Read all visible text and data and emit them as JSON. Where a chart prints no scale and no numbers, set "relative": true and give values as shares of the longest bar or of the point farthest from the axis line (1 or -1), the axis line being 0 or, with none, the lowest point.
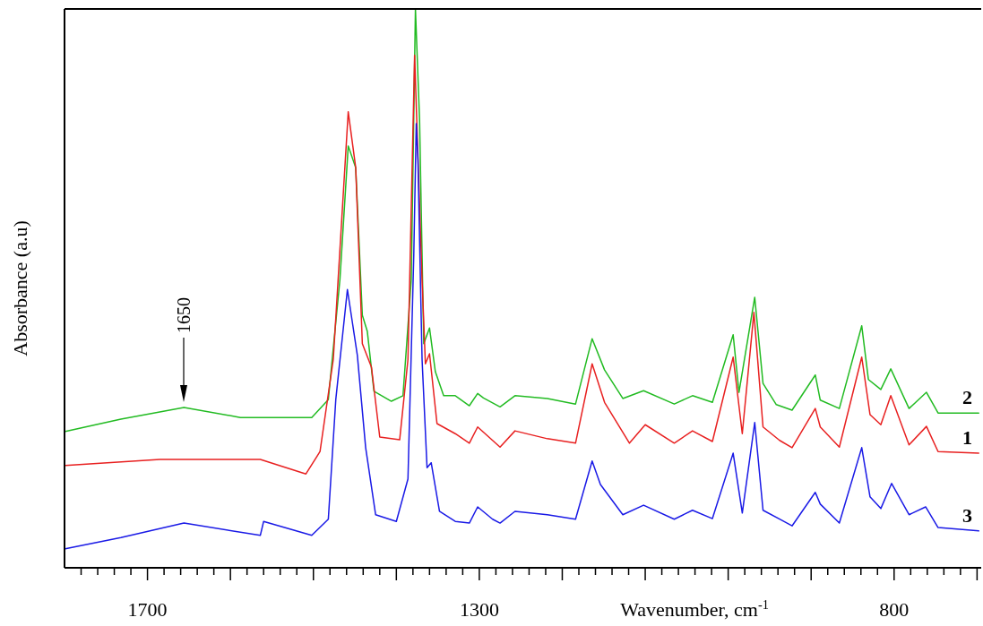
{
  "chart_data": {
    "type": "line",
    "relative": true,
    "xlabel": "Wavenumber, cm$^{-1}$",
    "ylabel": "Absorbance (a.u)",
    "xlim": [
      1800,
      695
    ],
    "xticks": [
      {
        "value": 1780,
        "label": null
      },
      {
        "value": 1760,
        "label": null
      },
      {
        "value": 1740,
        "label": null
      },
      {
        "value": 1720,
        "label": null
      },
      1700,
      {
        "value": 1680,
        "label": null
      },
      {
        "value": 1660,
        "label": null
      },
      {
        "value": 1640,
        "label": null
      },
      {
        "value": 1620,
        "label": null
      },
      {
        "value": 1600,
        "label": null
      },
      {
        "value": 1580,
        "label": null
      },
      {
        "value": 1560,
        "label": null
      },
      {
        "value": 1540,
        "label": null
      },
      {
        "value": 1520,
        "label": null
      },
      {
        "value": 1500,
        "label": null
      },
      {
        "value": 1480,
        "label": null
      },
      {
        "value": 1460,
        "label": null
      },
      {
        "value": 1440,
        "label": null
      },
      {
        "value": 1420,
        "label": null
      },
      {
        "value": 1400,
        "label": null
      },
      {
        "value": 1380,
        "label": null
      },
      {
        "value": 1360,
        "label": null
      },
      {
        "value": 1340,
        "label": null
      },
      {
        "value": 1320,
        "label": null
      },
      1300,
      {
        "value": 1280,
        "label": null
      },
      {
        "value": 1260,
        "label": null
      },
      {
        "value": 1240,
        "label": null
      },
      {
        "value": 1220,
        "label": null
      },
      {
        "value": 1200,
        "label": null
      },
      {
        "value": 1180,
        "label": null
      },
      {
        "value": 1160,
        "label": null
      },
      {
        "value": 1140,
        "label": null
      },
      {
        "value": 1120,
        "label": null
      },
      {
        "value": 1100,
        "label": null
      },
      {
        "value": 1080,
        "label": null
      },
      {
        "value": 1060,
        "label": null
      },
      {
        "value": 1040,
        "label": null
      },
      {
        "value": 1020,
        "label": null
      },
      {
        "value": 1000,
        "label": null
      },
      {
        "value": 980,
        "label": null
      },
      {
        "value": 960,
        "label": null
      },
      {
        "value": 940,
        "label": null
      },
      {
        "value": 920,
        "label": null
      },
      {
        "value": 900,
        "label": null
      },
      {
        "value": 880,
        "label": null
      },
      {
        "value": 860,
        "label": null
      },
      {
        "value": 840,
        "label": null
      },
      {
        "value": 820,
        "label": null
      },
      800,
      {
        "value": 780,
        "label": null
      },
      {
        "value": 760,
        "label": null
      },
      {
        "value": 740,
        "label": null
      },
      {
        "value": 720,
        "label": null
      },
      {
        "value": 700,
        "label": null
      }
    ],
    "legend": false,
    "grid": false,
    "line_style": "solid",
    "annotations": [
      "1650"
    ],
    "series": [
      {
        "name": "2",
        "color": "#22bb22",
        "x": [
          1799,
          1732,
          1656,
          1588,
          1502,
          1482,
          1468,
          1458,
          1449,
          1441,
          1435,
          1427,
          1406,
          1392,
          1382,
          1377,
          1372,
          1367,
          1360,
          1353,
          1343,
          1329,
          1312,
          1302,
          1295,
          1275,
          1257,
          1218,
          1184,
          1164,
          1149,
          1127,
          1102,
          1065,
          1043,
          1019,
          994,
          987,
          968,
          958,
          942,
          923,
          895,
          889,
          866,
          839,
          831,
          816,
          804,
          782,
          761,
          747,
          698
        ],
        "values": [
          0.244,
          0.266,
          0.287,
          0.269,
          0.269,
          0.301,
          0.516,
          0.755,
          0.716,
          0.452,
          0.423,
          0.316,
          0.298,
          0.308,
          0.516,
          1.0,
          0.801,
          0.401,
          0.429,
          0.351,
          0.308,
          0.308,
          0.29,
          0.312,
          0.304,
          0.288,
          0.308,
          0.303,
          0.293,
          0.41,
          0.354,
          0.303,
          0.317,
          0.293,
          0.308,
          0.296,
          0.417,
          0.314,
          0.484,
          0.33,
          0.292,
          0.282,
          0.345,
          0.3,
          0.285,
          0.433,
          0.337,
          0.319,
          0.356,
          0.285,
          0.314,
          0.277,
          0.277
        ]
      },
      {
        "name": "1",
        "color": "#e82020",
        "x": [
          1799,
          1685,
          1564,
          1509,
          1492,
          1476,
          1458,
          1449,
          1441,
          1430,
          1420,
          1396,
          1386,
          1378,
          1369,
          1365,
          1360,
          1351,
          1329,
          1312,
          1302,
          1275,
          1257,
          1218,
          1184,
          1164,
          1149,
          1119,
          1100,
          1065,
          1043,
          1019,
          994,
          983,
          969,
          958,
          938,
          923,
          895,
          889,
          866,
          839,
          829,
          816,
          804,
          782,
          761,
          747,
          698
        ],
        "values": [
          0.183,
          0.194,
          0.194,
          0.168,
          0.208,
          0.373,
          0.816,
          0.716,
          0.401,
          0.359,
          0.234,
          0.229,
          0.373,
          0.917,
          0.516,
          0.365,
          0.383,
          0.258,
          0.24,
          0.223,
          0.252,
          0.216,
          0.245,
          0.231,
          0.223,
          0.365,
          0.296,
          0.223,
          0.256,
          0.223,
          0.245,
          0.226,
          0.377,
          0.24,
          0.457,
          0.252,
          0.228,
          0.215,
          0.285,
          0.252,
          0.216,
          0.377,
          0.274,
          0.256,
          0.308,
          0.22,
          0.253,
          0.208,
          0.205
        ]
      },
      {
        "name": "3",
        "color": "#1a1ae6",
        "x": [
          1799,
          1732,
          1656,
          1564,
          1560,
          1502,
          1482,
          1473,
          1459,
          1447,
          1437,
          1425,
          1400,
          1386,
          1379,
          1376,
          1374,
          1369,
          1363,
          1358,
          1348,
          1329,
          1312,
          1302,
          1284,
          1275,
          1257,
          1218,
          1184,
          1164,
          1154,
          1127,
          1102,
          1065,
          1043,
          1019,
          994,
          983,
          968,
          958,
          938,
          923,
          895,
          889,
          866,
          839,
          829,
          816,
          803,
          782,
          762,
          747,
          698
        ],
        "values": [
          0.034,
          0.054,
          0.08,
          0.058,
          0.083,
          0.058,
          0.087,
          0.301,
          0.498,
          0.38,
          0.215,
          0.095,
          0.083,
          0.159,
          0.559,
          0.795,
          0.731,
          0.373,
          0.179,
          0.188,
          0.101,
          0.083,
          0.08,
          0.109,
          0.087,
          0.08,
          0.101,
          0.095,
          0.087,
          0.191,
          0.149,
          0.095,
          0.112,
          0.087,
          0.103,
          0.088,
          0.205,
          0.098,
          0.26,
          0.103,
          0.087,
          0.075,
          0.135,
          0.114,
          0.08,
          0.215,
          0.127,
          0.106,
          0.151,
          0.095,
          0.109,
          0.072,
          0.066
        ]
      }
    ]
  }
}
